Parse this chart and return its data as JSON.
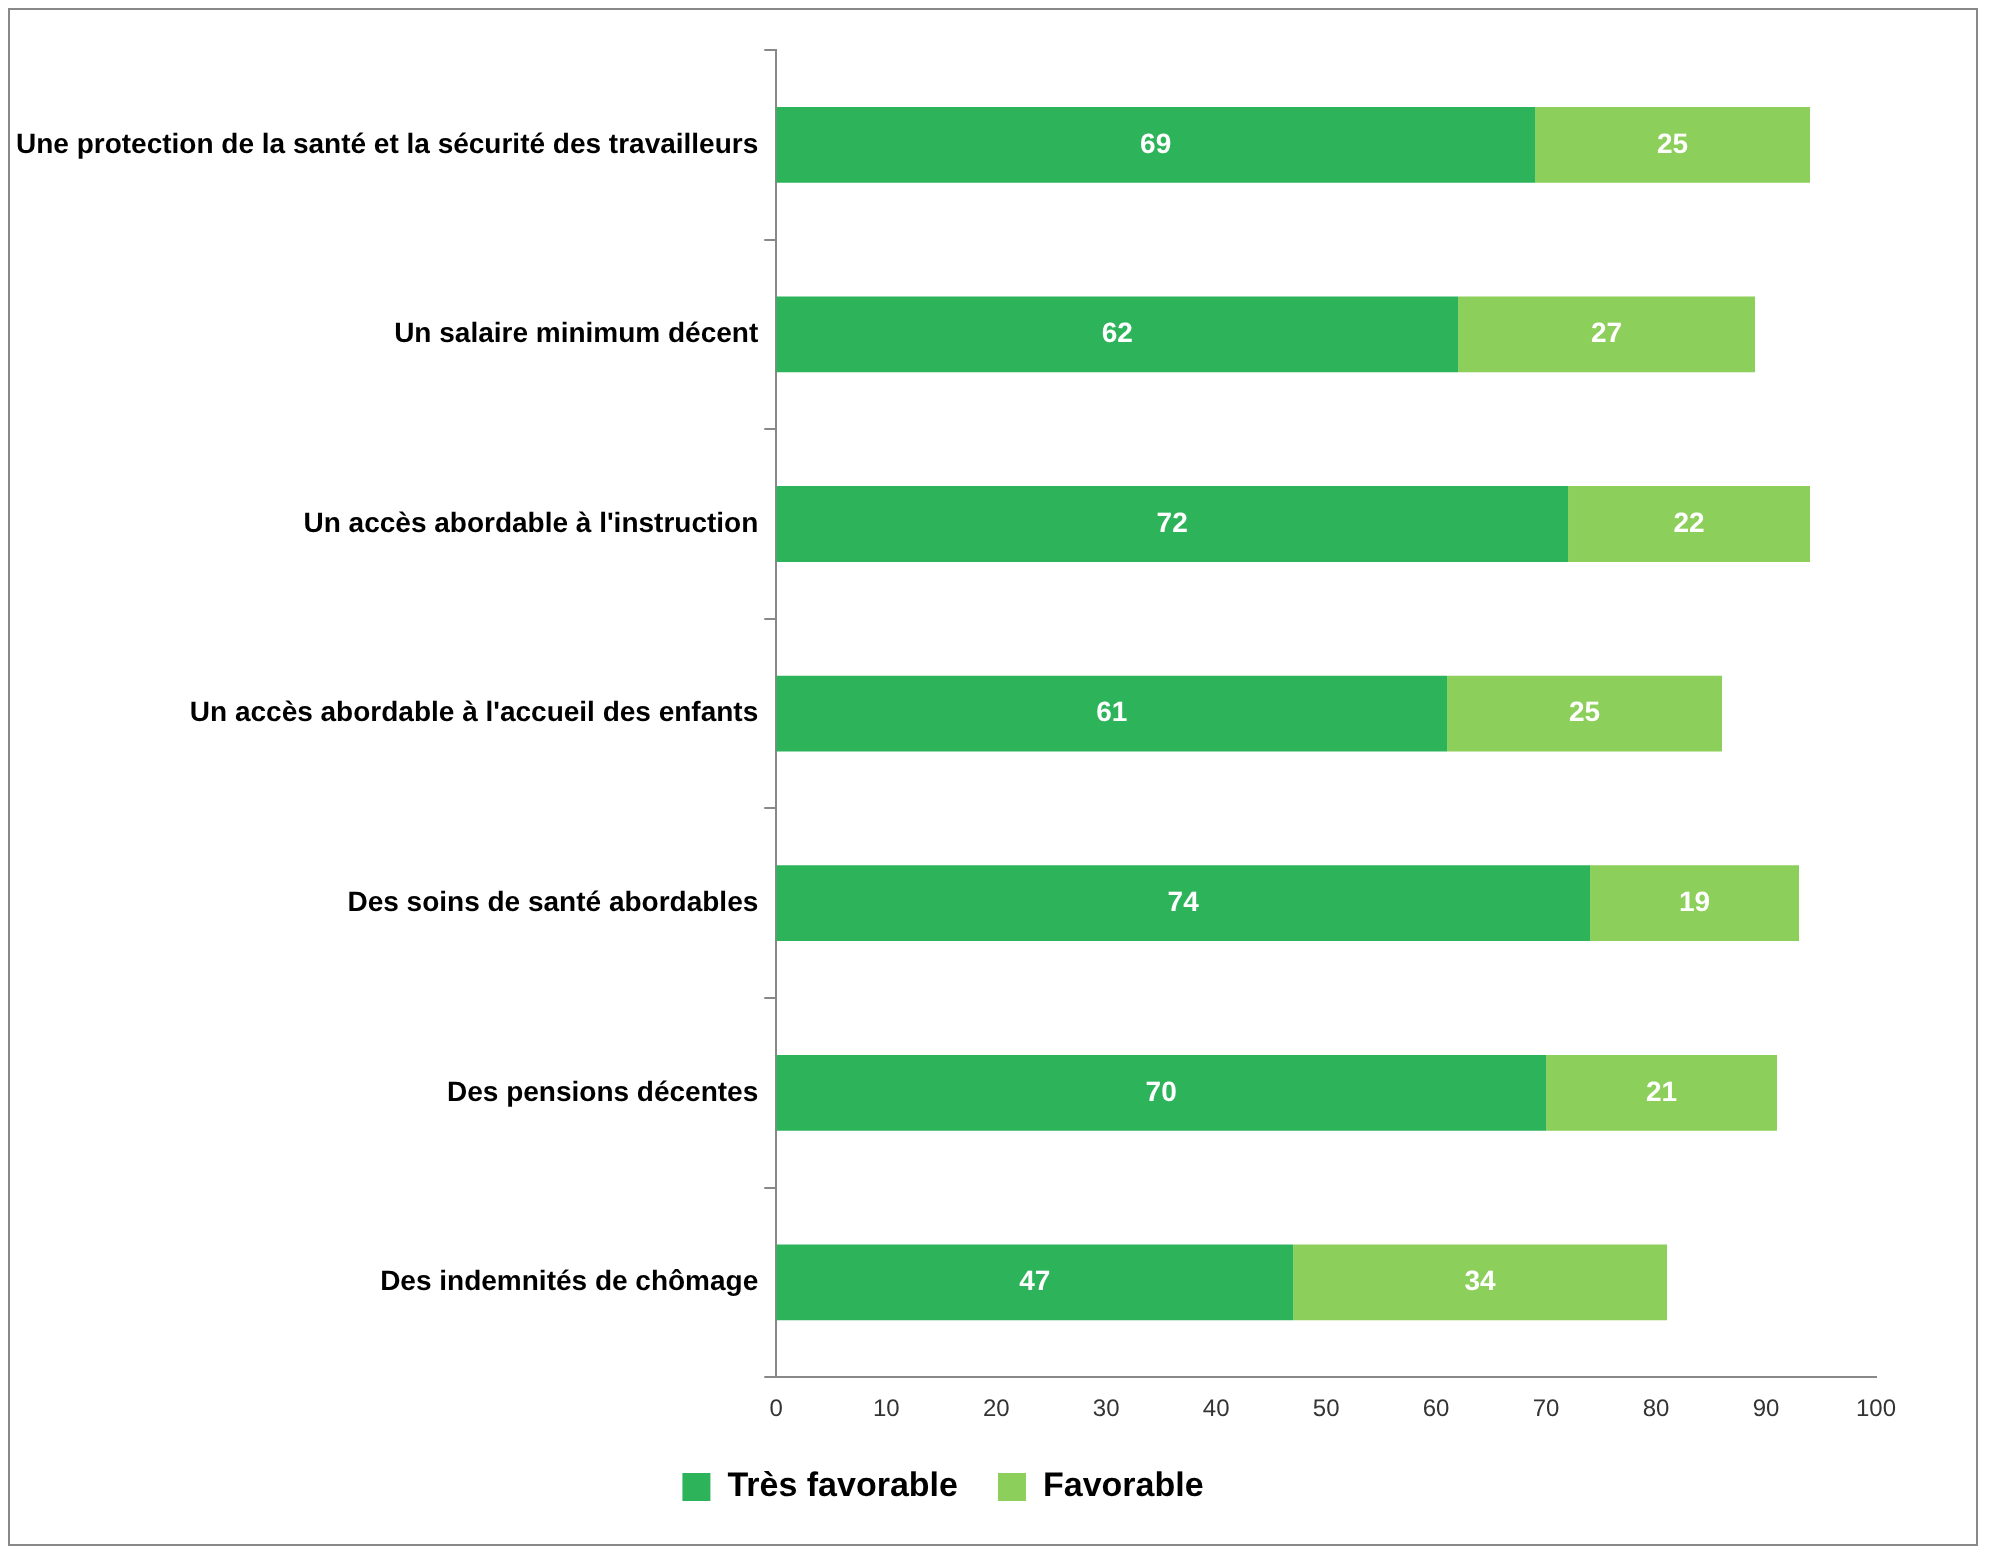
{
  "chart_data": {
    "type": "bar",
    "orientation": "horizontal",
    "stacked": true,
    "categories": [
      "Une protection de la santé et la sécurité des travailleurs",
      "Un salaire minimum décent",
      "Un accès abordable à l'instruction",
      "Un accès abordable à l'accueil des enfants",
      "Des soins de santé abordables",
      "Des pensions décentes",
      "Des indemnités de chômage"
    ],
    "series": [
      {
        "name": "Très favorable",
        "color": "#2db45a",
        "values": [
          69,
          62,
          72,
          61,
          74,
          70,
          47
        ]
      },
      {
        "name": "Favorable",
        "color": "#8ccf5a",
        "values": [
          25,
          27,
          22,
          25,
          19,
          21,
          34
        ]
      }
    ],
    "xlim": [
      0,
      100
    ],
    "xticks": [
      0,
      10,
      20,
      30,
      40,
      50,
      60,
      70,
      80,
      90,
      100
    ],
    "data_labels": true,
    "grid": false,
    "legend": "bottom"
  }
}
